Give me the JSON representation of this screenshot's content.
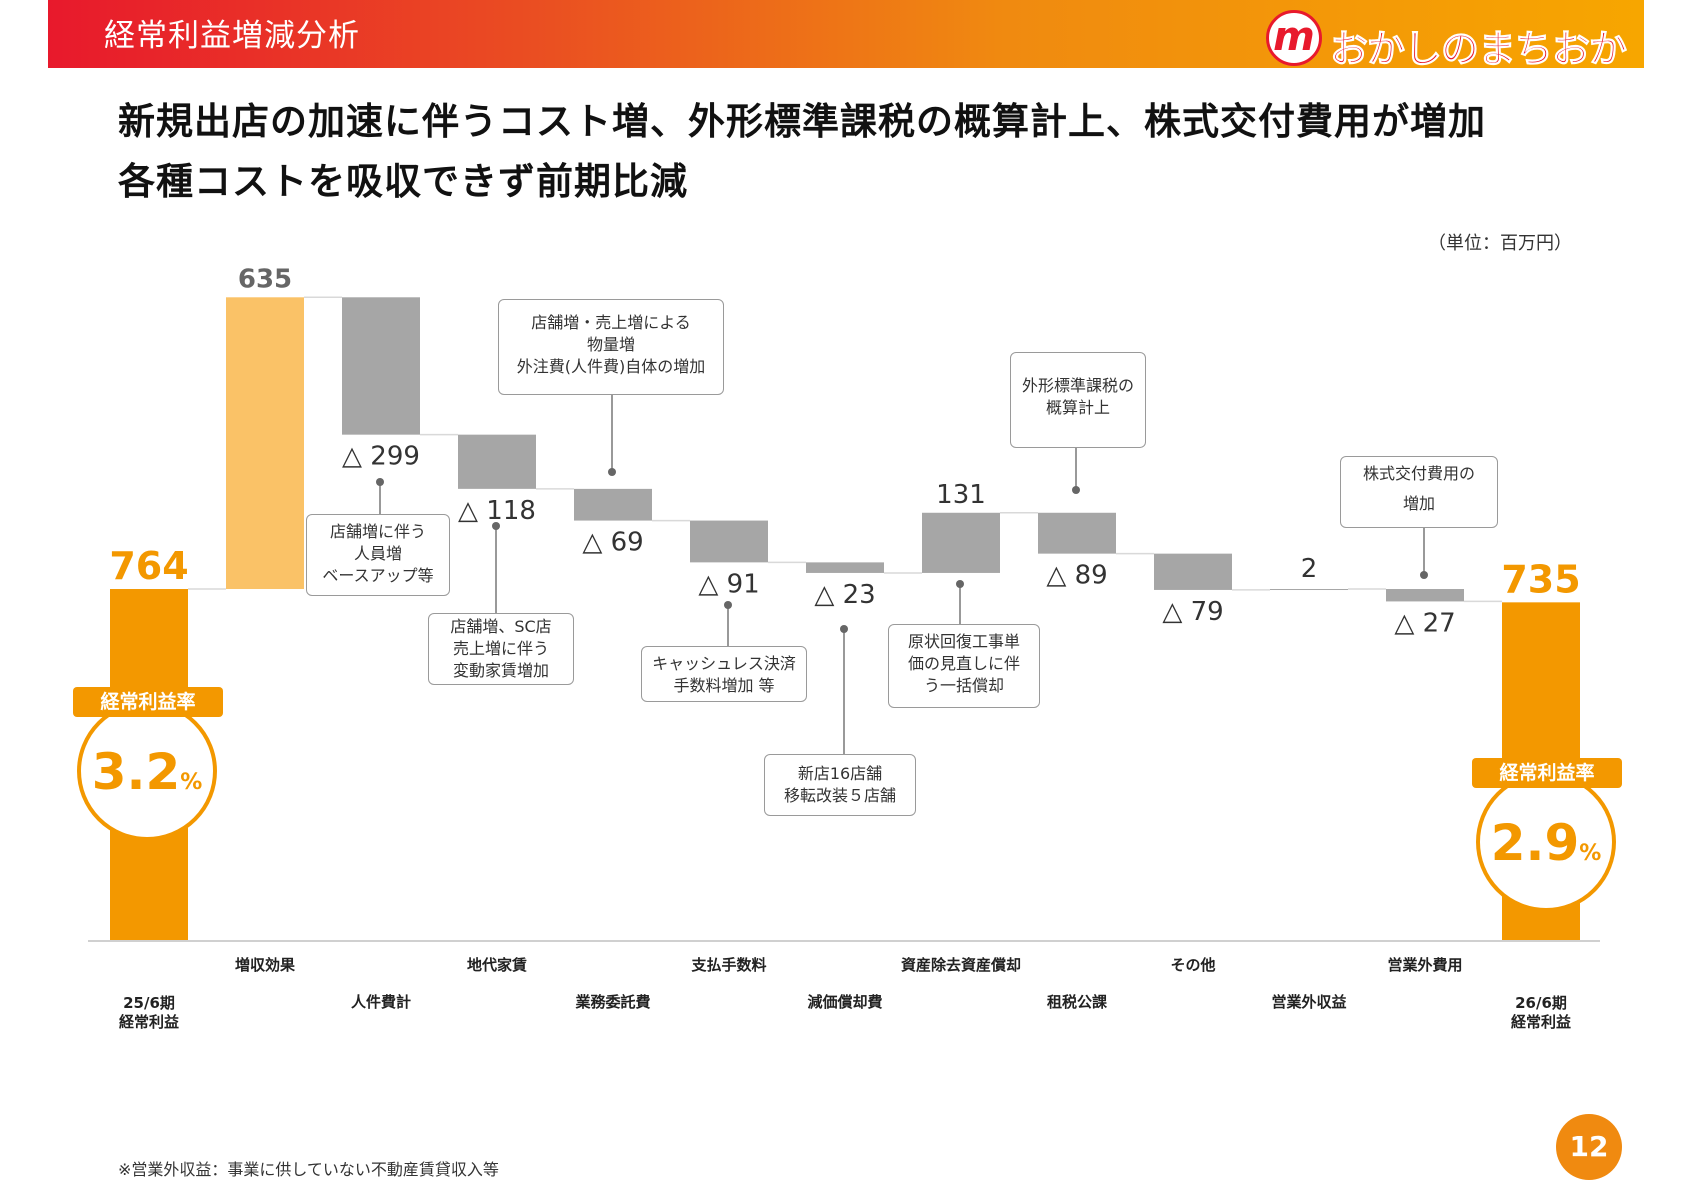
{
  "header": {
    "title": "経常利益増減分析",
    "logo_mark": "m",
    "logo_text": "おかしのまちおか"
  },
  "headline": {
    "line1": "新規出店の加速に伴うコスト増、外形標準課税の概算計上、株式交付費用が増加",
    "line2": "各種コストを吸収できず前期比減"
  },
  "unit_note": "（単位：百万円）",
  "colors": {
    "header_start": "#e8192c",
    "header_end": "#f7a600",
    "total_bar": "#f39800",
    "increase_bar": "#fac267",
    "decrease_bar": "#a6a6a6",
    "accent": "#f39800"
  },
  "chart_data": {
    "type": "bar",
    "subtype": "waterfall",
    "categories": [
      "25/6期\n経常利益",
      "増収効果",
      "人件費計",
      "地代家賃",
      "業務委託費",
      "支払手数料",
      "減価償却費",
      "資産除去資産償却",
      "租税公課",
      "その他",
      "営業外収益",
      "営業外費用",
      "26/6期\n経常利益"
    ],
    "values": [
      764,
      635,
      -299,
      -118,
      -69,
      -91,
      -23,
      131,
      -89,
      -79,
      2,
      -27,
      735
    ],
    "kinds": [
      "total",
      "increase",
      "decrease",
      "decrease",
      "decrease",
      "decrease",
      "decrease",
      "increase",
      "decrease",
      "decrease",
      "increase",
      "decrease",
      "total"
    ],
    "value_labels": [
      "764",
      "635",
      "△ 299",
      "△ 118",
      "△ 69",
      "△ 91",
      "△ 23",
      "131",
      "△ 89",
      "△ 79",
      "2",
      "△ 27",
      "735"
    ],
    "ylim": [
      0,
      1400
    ]
  },
  "ratios": [
    {
      "label": "経常利益率",
      "value": "3.2",
      "unit": "%"
    },
    {
      "label": "経常利益率",
      "value": "2.9",
      "unit": "%"
    }
  ],
  "callouts": [
    {
      "text": "店舗増に伴う\n人員増\nベースアップ等"
    },
    {
      "text": "店舗増、SC店\n売上増に伴う\n変動家賃増加"
    },
    {
      "text": "店舗増・売上増による\n物量増\n外注費(人件費)自体の増加"
    },
    {
      "text": "キャッシュレス決済\n手数料増加 等"
    },
    {
      "text": "新店16店舗\n移転改装５店舗"
    },
    {
      "text": "原状回復工事単\n価の見直しに伴\nう一括償却"
    },
    {
      "text": "外形標準課税の\n概算計上"
    },
    {
      "text": "株式交付費用の\n増加"
    }
  ],
  "footnote": "※営業外収益：事業に供していない不動産賃貸収入等",
  "page_number": "12"
}
